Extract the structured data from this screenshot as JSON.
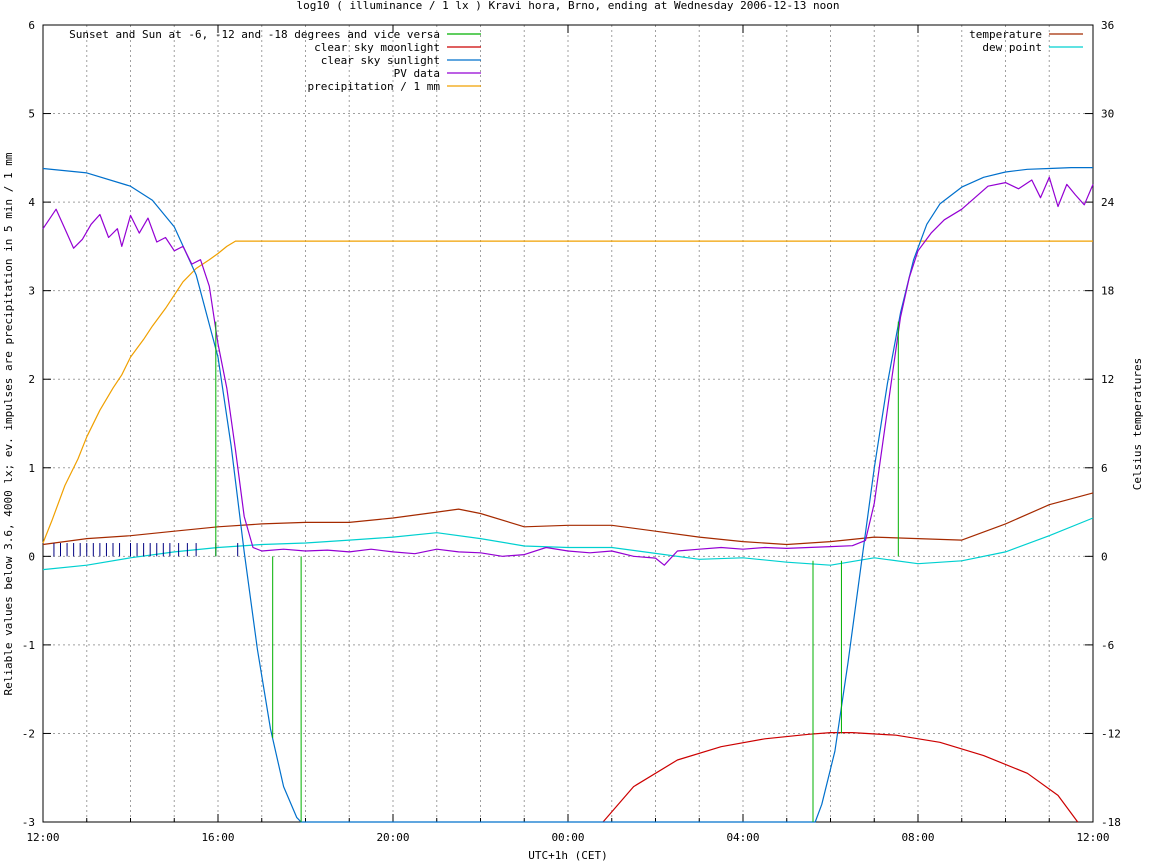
{
  "chart_data": {
    "type": "line",
    "title": "log10 ( illuminance / 1 lx ) Kravi hora, Brno, ending at Wednesday 2006-12-13 noon",
    "xlabel": "UTC+1h (CET)",
    "ylabel": "Reliable values below 3.6, 4000 lx; ev. impulses are precipitation in 5 min / 1 mm",
    "y2label": "Celsius temperatures",
    "xlim": [
      0,
      24
    ],
    "ylim": [
      -3,
      6
    ],
    "y2lim": [
      -18,
      36
    ],
    "x_ticks": [
      {
        "value": 0,
        "label": "12:00"
      },
      {
        "value": 4,
        "label": "16:00"
      },
      {
        "value": 8,
        "label": "20:00"
      },
      {
        "value": 12,
        "label": "00:00"
      },
      {
        "value": 16,
        "label": "04:00"
      },
      {
        "value": 20,
        "label": "08:00"
      },
      {
        "value": 24,
        "label": "12:00"
      }
    ],
    "y_ticks": [
      {
        "value": -3,
        "label": "-3"
      },
      {
        "value": -2,
        "label": "-2"
      },
      {
        "value": -1,
        "label": "-1"
      },
      {
        "value": 0,
        "label": "0"
      },
      {
        "value": 1,
        "label": "1"
      },
      {
        "value": 2,
        "label": "2"
      },
      {
        "value": 3,
        "label": "3"
      },
      {
        "value": 4,
        "label": "4"
      },
      {
        "value": 5,
        "label": "5"
      },
      {
        "value": 6,
        "label": "6"
      }
    ],
    "y2_ticks": [
      {
        "value": -18,
        "label": "-18"
      },
      {
        "value": -12,
        "label": "-12"
      },
      {
        "value": -6,
        "label": "-6"
      },
      {
        "value": 0,
        "label": "0"
      },
      {
        "value": 6,
        "label": "6"
      },
      {
        "value": 12,
        "label": "12"
      },
      {
        "value": 18,
        "label": "18"
      },
      {
        "value": 24,
        "label": "24"
      },
      {
        "value": 30,
        "label": "30"
      },
      {
        "value": 36,
        "label": "36"
      }
    ],
    "grid": true,
    "legend_left": [
      {
        "name": "Sunset and Sun at -6, -12 and -18 degrees and vice versa",
        "color": "#00b000"
      },
      {
        "name": "clear sky moonlight",
        "color": "#cc0000"
      },
      {
        "name": "clear sky sunlight",
        "color": "#0070cc"
      },
      {
        "name": "PV data",
        "color": "#9400d3"
      },
      {
        "name": "precipitation / 1 mm",
        "color": "#f0a000"
      }
    ],
    "legend_right": [
      {
        "name": "temperature",
        "color": "#a52a00"
      },
      {
        "name": "dew point",
        "color": "#00d0d0"
      }
    ],
    "series": {
      "sun_events": {
        "axis": "y1",
        "color": "#00b000",
        "impulses": [
          {
            "x": 3.95,
            "y_top": 2.65,
            "y_bottom": 0
          },
          {
            "x": 5.25,
            "y_top": 0,
            "y_bottom": -2.05
          },
          {
            "x": 5.9,
            "y_top": 0,
            "y_bottom": -3.0
          },
          {
            "x": 17.6,
            "y_top": -0.05,
            "y_bottom": -3.0
          },
          {
            "x": 18.25,
            "y_top": -0.05,
            "y_bottom": -2.0
          },
          {
            "x": 19.55,
            "y_top": 2.65,
            "y_bottom": 0
          }
        ]
      },
      "moonlight": {
        "axis": "y1",
        "color": "#cc0000",
        "x": [
          12.8,
          13.5,
          14.5,
          15.5,
          16.5,
          17.5,
          18.0,
          18.5,
          19.5,
          20.5,
          21.5,
          22.5,
          23.2,
          23.65
        ],
        "y": [
          -3.0,
          -2.6,
          -2.3,
          -2.15,
          -2.06,
          -2.01,
          -1.99,
          -1.99,
          -2.02,
          -2.1,
          -2.25,
          -2.45,
          -2.7,
          -3.0
        ]
      },
      "sunlight": {
        "axis": "y1",
        "color": "#0070cc",
        "x": [
          0,
          1.0,
          2.0,
          2.5,
          3.0,
          3.5,
          4.0,
          4.3,
          4.6,
          4.9,
          5.2,
          5.5,
          5.8,
          5.9,
          17.65,
          17.8,
          18.1,
          18.4,
          18.7,
          19.0,
          19.3,
          19.6,
          19.9,
          20.2,
          20.5,
          21.0,
          21.5,
          22.0,
          22.5,
          23.0,
          23.5,
          24.0
        ],
        "y": [
          4.38,
          4.33,
          4.18,
          4.02,
          3.72,
          3.18,
          2.25,
          1.25,
          0.05,
          -1.05,
          -1.95,
          -2.6,
          -2.95,
          -3.0,
          -3.0,
          -2.8,
          -2.2,
          -1.2,
          -0.1,
          1.0,
          1.95,
          2.75,
          3.35,
          3.75,
          3.98,
          4.17,
          4.28,
          4.34,
          4.37,
          4.38,
          4.39,
          4.39
        ]
      },
      "pv_data": {
        "axis": "y1",
        "color": "#9400d3",
        "x": [
          0,
          0.3,
          0.5,
          0.7,
          0.9,
          1.1,
          1.3,
          1.5,
          1.7,
          1.8,
          2.0,
          2.2,
          2.4,
          2.6,
          2.8,
          3.0,
          3.2,
          3.4,
          3.6,
          3.8,
          4.0,
          4.2,
          4.4,
          4.6,
          4.8,
          5.0,
          5.5,
          6.0,
          6.5,
          7.0,
          7.5,
          8.0,
          8.5,
          9.0,
          9.5,
          10.0,
          10.5,
          11.0,
          11.5,
          12.0,
          12.5,
          13.0,
          13.5,
          14.0,
          14.2,
          14.5,
          15.0,
          15.5,
          16.0,
          16.5,
          17.0,
          17.5,
          18.0,
          18.5,
          18.8,
          19.0,
          19.2,
          19.4,
          19.6,
          19.8,
          20.0,
          20.3,
          20.6,
          21.0,
          21.3,
          21.6,
          22.0,
          22.3,
          22.6,
          22.8,
          23.0,
          23.2,
          23.4,
          23.6,
          23.8,
          24.0
        ],
        "y": [
          3.7,
          3.92,
          3.7,
          3.48,
          3.58,
          3.75,
          3.86,
          3.6,
          3.7,
          3.5,
          3.85,
          3.65,
          3.82,
          3.55,
          3.6,
          3.45,
          3.5,
          3.3,
          3.35,
          3.05,
          2.4,
          1.9,
          1.2,
          0.45,
          0.1,
          0.06,
          0.08,
          0.06,
          0.07,
          0.05,
          0.08,
          0.05,
          0.03,
          0.08,
          0.05,
          0.04,
          0.0,
          0.02,
          0.1,
          0.06,
          0.04,
          0.06,
          0.0,
          -0.02,
          -0.1,
          0.06,
          0.08,
          0.1,
          0.08,
          0.1,
          0.09,
          0.1,
          0.11,
          0.12,
          0.18,
          0.6,
          1.3,
          2.0,
          2.7,
          3.15,
          3.45,
          3.65,
          3.8,
          3.92,
          4.05,
          4.18,
          4.22,
          4.15,
          4.25,
          4.05,
          4.28,
          3.95,
          4.2,
          4.08,
          3.97,
          4.2
        ]
      },
      "precipitation": {
        "axis": "y1",
        "color": "#f0a000",
        "x": [
          0,
          0.2,
          0.5,
          0.8,
          1.0,
          1.3,
          1.6,
          1.8,
          2.0,
          2.3,
          2.5,
          2.8,
          3.0,
          3.2,
          3.5,
          3.8,
          4.0,
          4.2,
          4.4,
          24.0
        ],
        "y": [
          0.15,
          0.4,
          0.8,
          1.1,
          1.35,
          1.65,
          1.9,
          2.05,
          2.25,
          2.45,
          2.6,
          2.8,
          2.95,
          3.1,
          3.25,
          3.35,
          3.42,
          3.5,
          3.56,
          3.56
        ]
      },
      "rain_impulses": {
        "axis": "y1",
        "color": "#000080",
        "x": [
          0.25,
          0.4,
          0.55,
          0.7,
          0.85,
          1.0,
          1.15,
          1.3,
          1.45,
          1.6,
          1.75,
          2.0,
          2.15,
          2.3,
          2.45,
          2.6,
          2.75,
          2.9,
          3.1,
          3.3,
          3.5,
          3.95,
          4.45
        ],
        "y": [
          0.15,
          0.15,
          0.15,
          0.15,
          0.15,
          0.15,
          0.15,
          0.15,
          0.15,
          0.15,
          0.15,
          0.15,
          0.15,
          0.15,
          0.15,
          0.15,
          0.15,
          0.15,
          0.15,
          0.15,
          0.15,
          0.15,
          0.15
        ]
      },
      "temperature": {
        "axis": "y2",
        "color": "#a52a00",
        "x": [
          0,
          1,
          2,
          3,
          4,
          5,
          6,
          7,
          8,
          9,
          9.5,
          10,
          11,
          12,
          13,
          14,
          15,
          16,
          17,
          18,
          19,
          20,
          21,
          22,
          23,
          24
        ],
        "y": [
          0.8,
          1.2,
          1.4,
          1.7,
          2.0,
          2.2,
          2.3,
          2.3,
          2.6,
          3.0,
          3.2,
          2.9,
          2.0,
          2.1,
          2.1,
          1.7,
          1.3,
          1.0,
          0.8,
          1.0,
          1.3,
          1.2,
          1.1,
          2.2,
          3.5,
          4.3
        ]
      },
      "dew_point": {
        "axis": "y2",
        "color": "#00d0d0",
        "x": [
          0,
          1,
          2,
          3,
          4,
          5,
          6,
          7,
          8,
          9,
          10,
          11,
          12,
          13,
          14,
          15,
          16,
          17,
          18,
          19,
          20,
          21,
          22,
          23,
          24
        ],
        "y": [
          -0.9,
          -0.6,
          -0.1,
          0.3,
          0.6,
          0.8,
          0.9,
          1.1,
          1.3,
          1.6,
          1.2,
          0.7,
          0.6,
          0.6,
          0.2,
          -0.2,
          -0.1,
          -0.4,
          -0.6,
          -0.1,
          -0.5,
          -0.3,
          0.3,
          1.4,
          2.6
        ]
      }
    }
  }
}
